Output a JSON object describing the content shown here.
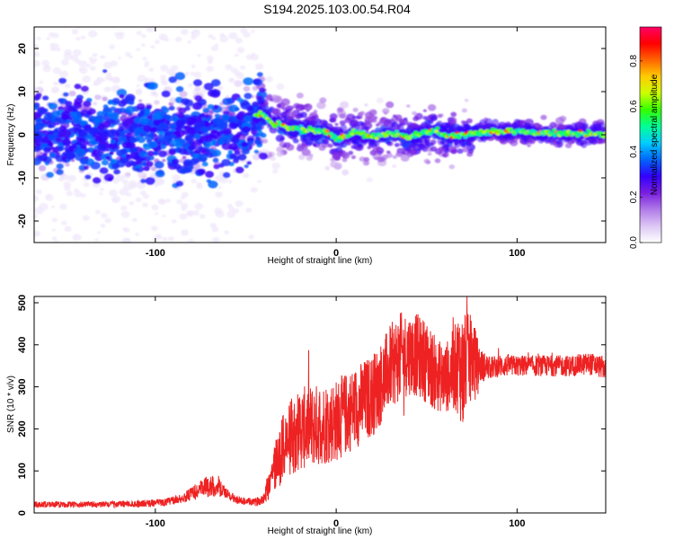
{
  "page_title": "S194.2025.103.00.54.R04",
  "chart_data": [
    {
      "type": "heatmap",
      "xlabel": "Height of straight line (km)",
      "ylabel": "Frequency (Hz)",
      "xlim": [
        -167,
        149
      ],
      "ylim": [
        -25,
        25
      ],
      "x_ticks": [
        -100,
        0,
        100
      ],
      "x_tick_labels": [
        "-100",
        "0",
        "100"
      ],
      "y_ticks": [
        -20,
        -10,
        0,
        10,
        20
      ],
      "y_tick_labels": [
        "-20",
        "-10",
        "0",
        "10",
        "20"
      ],
      "colorbar": {
        "label": "Normalized spectral amplitude",
        "range": [
          0,
          0.95
        ],
        "ticks": [
          0.0,
          0.2,
          0.4,
          0.6,
          0.8
        ],
        "tick_labels": [
          "0.0",
          "0.2",
          "0.4",
          "0.6",
          "0.8"
        ],
        "colors": [
          "#ffffff",
          "#dcc6f5",
          "#b07ae8",
          "#7a1fe0",
          "#3300ff",
          "#0066ff",
          "#00ccff",
          "#00ff99",
          "#33ff00",
          "#ccff00",
          "#ffcc00",
          "#ff6600",
          "#ff0000",
          "#ff0066"
        ]
      },
      "ridge": {
        "x": [
          -167,
          -140,
          -120,
          -100,
          -80,
          -60,
          -48,
          -42,
          -35,
          -25,
          -15,
          -5,
          0,
          10,
          20,
          30,
          40,
          50,
          55,
          60,
          70,
          80,
          100,
          120,
          149
        ],
        "y": [
          0,
          0.5,
          -0.5,
          0,
          0.3,
          1.0,
          3.0,
          5.0,
          2.5,
          1.5,
          1.0,
          0.5,
          -1.0,
          0.5,
          -0.5,
          0.2,
          -0.5,
          0.5,
          1.0,
          -0.5,
          0.0,
          0.5,
          0.8,
          0.3,
          0.2
        ]
      }
    },
    {
      "type": "line",
      "xlabel": "Height of straight line (km)",
      "ylabel": "SNR (10 * v/v)",
      "xlim": [
        -167,
        149
      ],
      "ylim": [
        0,
        515
      ],
      "x_ticks": [
        -100,
        0,
        100
      ],
      "x_tick_labels": [
        "-100",
        "0",
        "100"
      ],
      "y_ticks": [
        0,
        100,
        200,
        300,
        400,
        500
      ],
      "y_tick_labels": [
        "0",
        "100",
        "200",
        "300",
        "400",
        "500"
      ],
      "color": "#ee2222",
      "series": [
        {
          "x": [
            -167,
            -150,
            -130,
            -110,
            -95,
            -85,
            -75,
            -70,
            -65,
            -60,
            -55,
            -45,
            -40,
            -37,
            -34,
            -30,
            -25,
            -20,
            -10,
            0,
            10,
            20,
            25,
            30,
            35,
            40,
            45,
            50,
            55,
            60,
            65,
            68,
            70,
            72,
            75,
            80,
            85,
            90,
            100,
            110,
            120,
            130,
            140,
            149
          ],
          "y": [
            20,
            20,
            20,
            22,
            25,
            35,
            55,
            65,
            60,
            45,
            30,
            25,
            35,
            75,
            110,
            150,
            180,
            200,
            210,
            220,
            250,
            280,
            310,
            350,
            370,
            380,
            375,
            360,
            330,
            320,
            340,
            360,
            330,
            360,
            370,
            350,
            345,
            350,
            350,
            350,
            350,
            350,
            355,
            345
          ],
          "spread": [
            8,
            8,
            8,
            9,
            10,
            12,
            25,
            30,
            25,
            12,
            10,
            10,
            15,
            50,
            70,
            90,
            100,
            110,
            110,
            110,
            110,
            110,
            110,
            110,
            120,
            110,
            110,
            110,
            100,
            90,
            110,
            140,
            160,
            130,
            110,
            45,
            30,
            30,
            28,
            28,
            28,
            28,
            30,
            30
          ],
          "y_min_clip": 0,
          "y_max_clip": 515
        }
      ]
    }
  ]
}
